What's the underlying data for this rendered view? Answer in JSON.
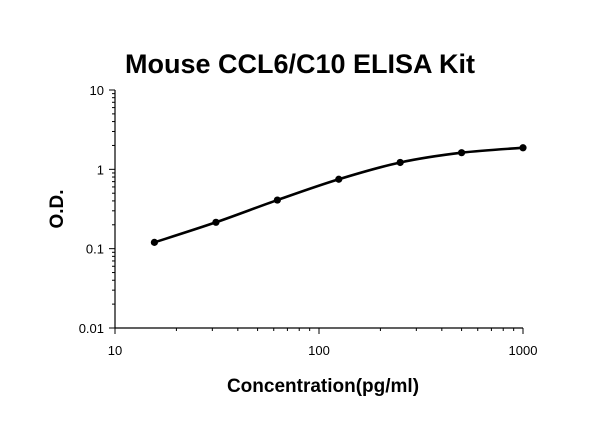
{
  "chart_data": {
    "type": "line",
    "title": "Mouse CCL6/C10 ELISA Kit",
    "xlabel": "Concentration(pg/ml)",
    "ylabel": "O.D.",
    "x_scale": "log",
    "y_scale": "log",
    "xlim": [
      10,
      1000
    ],
    "ylim": [
      0.01,
      10
    ],
    "x_ticks": [
      {
        "value": 10,
        "label": "10"
      },
      {
        "value": 100,
        "label": "100"
      },
      {
        "value": 1000,
        "label": "1000"
      }
    ],
    "y_ticks": [
      {
        "value": 10,
        "label": "10"
      },
      {
        "value": 1,
        "label": "1"
      },
      {
        "value": 0.1,
        "label": "0.1"
      },
      {
        "value": 0.01,
        "label": "0.01"
      }
    ],
    "grid": false,
    "legend": "none",
    "series": [
      {
        "color": "#000000",
        "x": [
          15.6,
          31.25,
          62.5,
          125,
          250,
          500,
          1000
        ],
        "y": [
          0.12,
          0.215,
          0.41,
          0.75,
          1.22,
          1.62,
          1.87
        ]
      }
    ]
  }
}
